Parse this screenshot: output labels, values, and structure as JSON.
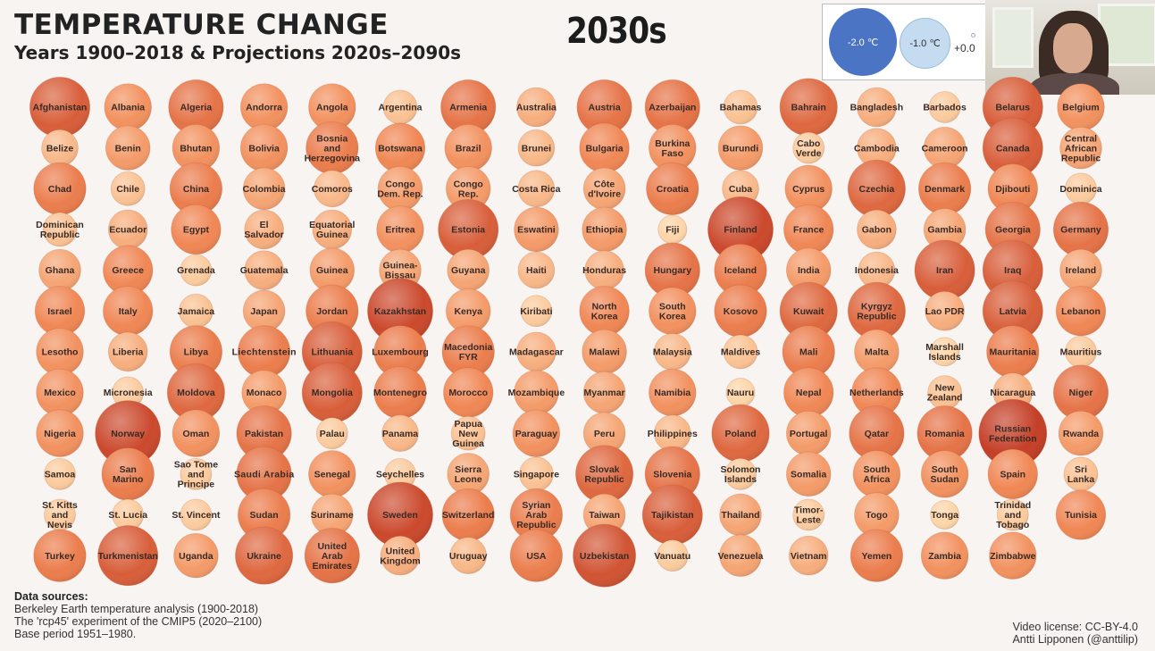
{
  "header": {
    "title": "TEMPERATURE CHANGE",
    "subtitle": "Years 1900–2018 & Projections 2020s–2090s",
    "decade": "2030s"
  },
  "legend": {
    "items": [
      {
        "label": "-2.0 ℃",
        "value": -2.0
      },
      {
        "label": "-1.0 ℃",
        "value": -1.0
      },
      {
        "label": "+0.0",
        "value": 0.0
      }
    ]
  },
  "footer": {
    "sources_heading": "Data sources:",
    "source_lines": [
      "Berkeley Earth temperature analysis (1900-2018)",
      "The 'rcp45' experiment of the CMIP5 (2020–2100)",
      "Base period 1951–1980."
    ],
    "license": "Video license: CC-BY-4.0",
    "author": "Antti Lipponen (@anttilip)"
  },
  "chart_data": {
    "type": "bubble-grid",
    "title": "TEMPERATURE CHANGE",
    "subtitle": "Years 1900–2018 & Projections 2020s–2090s",
    "period": "2030s",
    "unit": "℃",
    "base_period": "1951–1980",
    "columns": 16,
    "colors": {
      "min": "#fdd5a8",
      "mid": "#f08552",
      "max": "#c43f27"
    },
    "countries": [
      {
        "name": "Afghanistan",
        "value": 1.8
      },
      {
        "name": "Albania",
        "value": 1.3
      },
      {
        "name": "Algeria",
        "value": 1.6
      },
      {
        "name": "Andorra",
        "value": 1.3
      },
      {
        "name": "Angola",
        "value": 1.3
      },
      {
        "name": "Argentina",
        "value": 0.8
      },
      {
        "name": "Armenia",
        "value": 1.6
      },
      {
        "name": "Australia",
        "value": 1.0
      },
      {
        "name": "Austria",
        "value": 1.6
      },
      {
        "name": "Azerbaijan",
        "value": 1.6
      },
      {
        "name": "Bahamas",
        "value": 0.8
      },
      {
        "name": "Bahrain",
        "value": 1.7
      },
      {
        "name": "Bangladesh",
        "value": 1.0
      },
      {
        "name": "Barbados",
        "value": 0.7
      },
      {
        "name": "Belarus",
        "value": 1.8
      },
      {
        "name": "Belgium",
        "value": 1.3
      },
      {
        "name": "Belize",
        "value": 0.9
      },
      {
        "name": "Benin",
        "value": 1.2
      },
      {
        "name": "Bhutan",
        "value": 1.3
      },
      {
        "name": "Bolivia",
        "value": 1.3
      },
      {
        "name": "Bosnia\nand\nHerzegovina",
        "value": 1.5
      },
      {
        "name": "Botswana",
        "value": 1.4
      },
      {
        "name": "Brazil",
        "value": 1.3
      },
      {
        "name": "Brunei",
        "value": 0.9
      },
      {
        "name": "Bulgaria",
        "value": 1.4
      },
      {
        "name": "Burkina\nFaso",
        "value": 1.3
      },
      {
        "name": "Burundi",
        "value": 1.2
      },
      {
        "name": "Cabo\nVerde",
        "value": 0.7
      },
      {
        "name": "Cambodia",
        "value": 1.0
      },
      {
        "name": "Cameroon",
        "value": 1.1
      },
      {
        "name": "Canada",
        "value": 1.8
      },
      {
        "name": "Central\nAfrican\nRepublic",
        "value": 1.1
      },
      {
        "name": "Chad",
        "value": 1.5
      },
      {
        "name": "Chile",
        "value": 0.8
      },
      {
        "name": "China",
        "value": 1.5
      },
      {
        "name": "Colombia",
        "value": 1.1
      },
      {
        "name": "Comoros",
        "value": 0.9
      },
      {
        "name": "Congo\nDem. Rep.",
        "value": 1.2
      },
      {
        "name": "Congo\nRep.",
        "value": 1.2
      },
      {
        "name": "Costa Rica",
        "value": 0.9
      },
      {
        "name": "Côte\nd'Ivoire",
        "value": 1.1
      },
      {
        "name": "Croatia",
        "value": 1.5
      },
      {
        "name": "Cuba",
        "value": 0.9
      },
      {
        "name": "Cyprus",
        "value": 1.3
      },
      {
        "name": "Czechia",
        "value": 1.7
      },
      {
        "name": "Denmark",
        "value": 1.5
      },
      {
        "name": "Djibouti",
        "value": 1.4
      },
      {
        "name": "Dominica",
        "value": 0.7
      },
      {
        "name": "Dominican\nRepublic",
        "value": 0.8
      },
      {
        "name": "Ecuador",
        "value": 1.0
      },
      {
        "name": "Egypt",
        "value": 1.4
      },
      {
        "name": "El\nSalvador",
        "value": 1.0
      },
      {
        "name": "Equatorial\nGuinea",
        "value": 1.0
      },
      {
        "name": "Eritrea",
        "value": 1.3
      },
      {
        "name": "Estonia",
        "value": 1.8
      },
      {
        "name": "Eswatini",
        "value": 1.2
      },
      {
        "name": "Ethiopia",
        "value": 1.2
      },
      {
        "name": "Fiji",
        "value": 0.6
      },
      {
        "name": "Finland",
        "value": 2.0
      },
      {
        "name": "France",
        "value": 1.4
      },
      {
        "name": "Gabon",
        "value": 1.0
      },
      {
        "name": "Gambia",
        "value": 1.1
      },
      {
        "name": "Georgia",
        "value": 1.6
      },
      {
        "name": "Germany",
        "value": 1.6
      },
      {
        "name": "Ghana",
        "value": 1.1
      },
      {
        "name": "Greece",
        "value": 1.4
      },
      {
        "name": "Grenada",
        "value": 0.7
      },
      {
        "name": "Guatemala",
        "value": 1.0
      },
      {
        "name": "Guinea",
        "value": 1.2
      },
      {
        "name": "Guinea-\nBissau",
        "value": 1.1
      },
      {
        "name": "Guyana",
        "value": 1.1
      },
      {
        "name": "Haiti",
        "value": 0.9
      },
      {
        "name": "Honduras",
        "value": 1.0
      },
      {
        "name": "Hungary",
        "value": 1.6
      },
      {
        "name": "Iceland",
        "value": 1.5
      },
      {
        "name": "India",
        "value": 1.2
      },
      {
        "name": "Indonesia",
        "value": 0.9
      },
      {
        "name": "Iran",
        "value": 1.8
      },
      {
        "name": "Iraq",
        "value": 1.8
      },
      {
        "name": "Ireland",
        "value": 1.1
      },
      {
        "name": "Israel",
        "value": 1.4
      },
      {
        "name": "Italy",
        "value": 1.4
      },
      {
        "name": "Jamaica",
        "value": 0.8
      },
      {
        "name": "Japan",
        "value": 1.1
      },
      {
        "name": "Jordan",
        "value": 1.5
      },
      {
        "name": "Kazakhstan",
        "value": 2.0
      },
      {
        "name": "Kenya",
        "value": 1.2
      },
      {
        "name": "Kiribati",
        "value": 0.7
      },
      {
        "name": "North\nKorea",
        "value": 1.4
      },
      {
        "name": "South\nKorea",
        "value": 1.3
      },
      {
        "name": "Kosovo",
        "value": 1.5
      },
      {
        "name": "Kuwait",
        "value": 1.7
      },
      {
        "name": "Kyrgyz\nRepublic",
        "value": 1.7
      },
      {
        "name": "Lao PDR",
        "value": 1.0
      },
      {
        "name": "Latvia",
        "value": 1.8
      },
      {
        "name": "Lebanon",
        "value": 1.4
      },
      {
        "name": "Lesotho",
        "value": 1.3
      },
      {
        "name": "Liberia",
        "value": 1.0
      },
      {
        "name": "Libya",
        "value": 1.5
      },
      {
        "name": "Liechtenstein",
        "value": 1.5
      },
      {
        "name": "Lithuania",
        "value": 1.8
      },
      {
        "name": "Luxembourg",
        "value": 1.5
      },
      {
        "name": "Macedonia\nFYR",
        "value": 1.5
      },
      {
        "name": "Madagascar",
        "value": 1.0
      },
      {
        "name": "Malawi",
        "value": 1.2
      },
      {
        "name": "Malaysia",
        "value": 0.9
      },
      {
        "name": "Maldives",
        "value": 0.8
      },
      {
        "name": "Mali",
        "value": 1.5
      },
      {
        "name": "Malta",
        "value": 1.2
      },
      {
        "name": "Marshall\nIslands",
        "value": 0.6
      },
      {
        "name": "Mauritania",
        "value": 1.5
      },
      {
        "name": "Mauritius",
        "value": 0.7
      },
      {
        "name": "Mexico",
        "value": 1.3
      },
      {
        "name": "Micronesia",
        "value": 0.7
      },
      {
        "name": "Moldova",
        "value": 1.7
      },
      {
        "name": "Monaco",
        "value": 1.2
      },
      {
        "name": "Mongolia",
        "value": 1.8
      },
      {
        "name": "Montenegro",
        "value": 1.5
      },
      {
        "name": "Morocco",
        "value": 1.4
      },
      {
        "name": "Mozambique",
        "value": 1.2
      },
      {
        "name": "Myanmar",
        "value": 1.1
      },
      {
        "name": "Namibia",
        "value": 1.3
      },
      {
        "name": "Nauru",
        "value": 0.6
      },
      {
        "name": "Nepal",
        "value": 1.4
      },
      {
        "name": "Netherlands",
        "value": 1.4
      },
      {
        "name": "New\nZealand",
        "value": 0.8
      },
      {
        "name": "Nicaragua",
        "value": 1.0
      },
      {
        "name": "Niger",
        "value": 1.6
      },
      {
        "name": "Nigeria",
        "value": 1.3
      },
      {
        "name": "Norway",
        "value": 2.0
      },
      {
        "name": "Oman",
        "value": 1.3
      },
      {
        "name": "Pakistan",
        "value": 1.6
      },
      {
        "name": "Palau",
        "value": 0.7
      },
      {
        "name": "Panama",
        "value": 0.9
      },
      {
        "name": "Papua\nNew\nGuinea",
        "value": 0.8
      },
      {
        "name": "Paraguay",
        "value": 1.3
      },
      {
        "name": "Peru",
        "value": 1.1
      },
      {
        "name": "Philippines",
        "value": 0.9
      },
      {
        "name": "Poland",
        "value": 1.7
      },
      {
        "name": "Portugal",
        "value": 1.2
      },
      {
        "name": "Qatar",
        "value": 1.6
      },
      {
        "name": "Romania",
        "value": 1.6
      },
      {
        "name": "Russian\nFederation",
        "value": 2.1
      },
      {
        "name": "Rwanda",
        "value": 1.2
      },
      {
        "name": "Samoa",
        "value": 0.7
      },
      {
        "name": "San\nMarino",
        "value": 1.5
      },
      {
        "name": "Sao Tome\nand\nPrincipe",
        "value": 0.7
      },
      {
        "name": "Saudi Arabia",
        "value": 1.6
      },
      {
        "name": "Senegal",
        "value": 1.3
      },
      {
        "name": "Seychelles",
        "value": 0.7
      },
      {
        "name": "Sierra\nLeone",
        "value": 1.1
      },
      {
        "name": "Singapore",
        "value": 0.8
      },
      {
        "name": "Slovak\nRepublic",
        "value": 1.7
      },
      {
        "name": "Slovenia",
        "value": 1.6
      },
      {
        "name": "Solomon\nIslands",
        "value": 0.7
      },
      {
        "name": "Somalia",
        "value": 1.2
      },
      {
        "name": "South\nAfrica",
        "value": 1.3
      },
      {
        "name": "South\nSudan",
        "value": 1.3
      },
      {
        "name": "Spain",
        "value": 1.4
      },
      {
        "name": "Sri\nLanka",
        "value": 0.8
      },
      {
        "name": "St. Kitts\nand\nNevis",
        "value": 0.7
      },
      {
        "name": "St. Lucia",
        "value": 0.7
      },
      {
        "name": "St. Vincent",
        "value": 0.7
      },
      {
        "name": "Sudan",
        "value": 1.5
      },
      {
        "name": "Suriname",
        "value": 1.1
      },
      {
        "name": "Sweden",
        "value": 2.0
      },
      {
        "name": "Switzerland",
        "value": 1.5
      },
      {
        "name": "Syrian\nArab\nRepublic",
        "value": 1.5
      },
      {
        "name": "Taiwan",
        "value": 1.1
      },
      {
        "name": "Tajikistan",
        "value": 1.8
      },
      {
        "name": "Thailand",
        "value": 1.1
      },
      {
        "name": "Timor-\nLeste",
        "value": 0.7
      },
      {
        "name": "Togo",
        "value": 1.2
      },
      {
        "name": "Tonga",
        "value": 0.6
      },
      {
        "name": "Trinidad\nand\nTobago",
        "value": 0.7
      },
      {
        "name": "Tunisia",
        "value": 1.4
      },
      {
        "name": "Turkey",
        "value": 1.5
      },
      {
        "name": "Turkmenistan",
        "value": 1.8
      },
      {
        "name": "Uganda",
        "value": 1.2
      },
      {
        "name": "Ukraine",
        "value": 1.7
      },
      {
        "name": "United\nArab\nEmirates",
        "value": 1.6
      },
      {
        "name": "United\nKingdom",
        "value": 1.0
      },
      {
        "name": "Uruguay",
        "value": 0.9
      },
      {
        "name": "USA",
        "value": 1.5
      },
      {
        "name": "Uzbekistan",
        "value": 1.9
      },
      {
        "name": "Vanuatu",
        "value": 0.7
      },
      {
        "name": "Venezuela",
        "value": 1.1
      },
      {
        "name": "Vietnam",
        "value": 1.0
      },
      {
        "name": "Yemen",
        "value": 1.5
      },
      {
        "name": "Zambia",
        "value": 1.3
      },
      {
        "name": "Zimbabwe",
        "value": 1.3
      }
    ]
  }
}
